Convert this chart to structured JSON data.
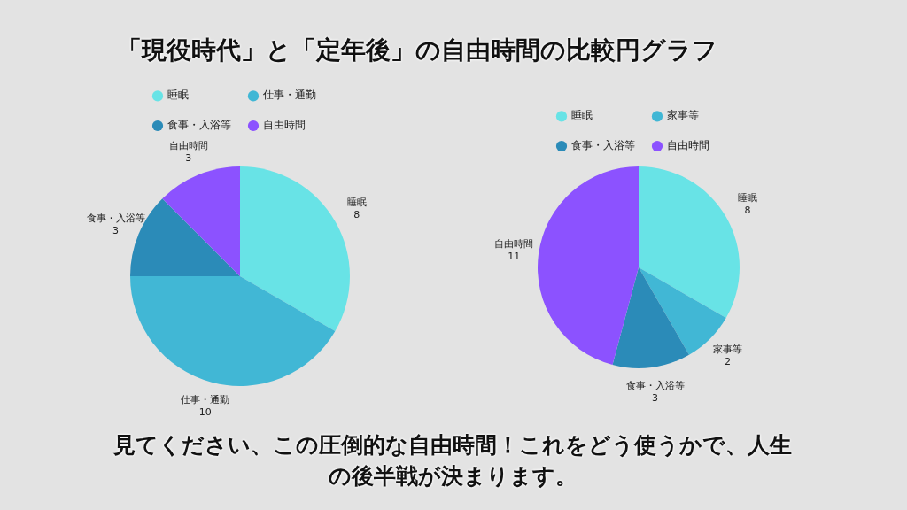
{
  "chart_data": [
    {
      "type": "pie",
      "title": "「現役時代」と「定年後」の自由時間の比較円グラフ",
      "categories": [
        "睡眠",
        "仕事・通勤",
        "食事・入浴等",
        "自由時間"
      ],
      "values": [
        8,
        10,
        3,
        3
      ],
      "colors": [
        "#68e3e6",
        "#41b7d5",
        "#2b8bb8",
        "#8c52ff"
      ],
      "data_labels": true,
      "legend": "top",
      "annotations": [
        "見てください、この圧倒的な自由時間！これをどう使うかで、人生の後半戦が決まります。"
      ]
    },
    {
      "type": "pie",
      "categories": [
        "睡眠",
        "家事等",
        "食事・入浴等",
        "自由時間"
      ],
      "values": [
        8,
        2,
        3,
        11
      ],
      "colors": [
        "#68e3e6",
        "#41b7d5",
        "#2b8bb8",
        "#8c52ff"
      ],
      "data_labels": true,
      "legend": "top"
    }
  ]
}
